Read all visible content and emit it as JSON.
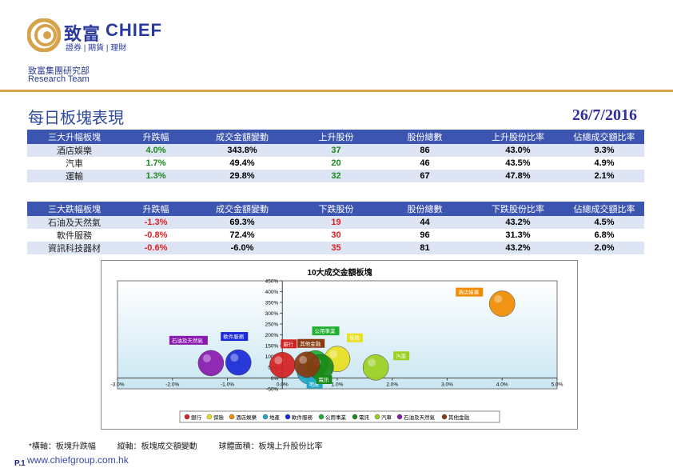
{
  "brand": {
    "name_cn": "致富",
    "name_en": "CHIEF",
    "subtitle": "證券 | 期貨 | 理財"
  },
  "dept": {
    "cn": "致富集團研究部",
    "en": "Research Team"
  },
  "page_title": "每日板塊表現",
  "date": "26/7/2016",
  "top_table": {
    "headers": [
      "三大升幅板塊",
      "升跌幅",
      "成交金額變動",
      "上升股份",
      "股份總數",
      "上升股份比率",
      "佔總成交額比率"
    ],
    "rows": [
      {
        "name": "酒店娛樂",
        "change": "4.0%",
        "turnover": "343.8%",
        "count": "37",
        "total": "86",
        "ratio": "43.0%",
        "share": "9.3%"
      },
      {
        "name": "汽車",
        "change": "1.7%",
        "turnover": "49.4%",
        "count": "20",
        "total": "46",
        "ratio": "43.5%",
        "share": "4.9%"
      },
      {
        "name": "運輸",
        "change": "1.3%",
        "turnover": "29.8%",
        "count": "32",
        "total": "67",
        "ratio": "47.8%",
        "share": "2.1%"
      }
    ]
  },
  "bottom_table": {
    "headers": [
      "三大跌幅板塊",
      "升跌幅",
      "成交金額變動",
      "下跌股份",
      "股份總數",
      "下跌股份比率",
      "佔總成交額比率"
    ],
    "rows": [
      {
        "name": "石油及天然氣",
        "change": "-1.3%",
        "turnover": "69.3%",
        "count": "19",
        "total": "44",
        "ratio": "43.2%",
        "share": "4.5%"
      },
      {
        "name": "軟件服務",
        "change": "-0.8%",
        "turnover": "72.4%",
        "count": "30",
        "total": "96",
        "ratio": "31.3%",
        "share": "6.8%"
      },
      {
        "name": "資訊科技器材",
        "change": "-0.6%",
        "turnover": "-6.0%",
        "count": "35",
        "total": "81",
        "ratio": "43.2%",
        "share": "2.0%"
      }
    ]
  },
  "chart_data": {
    "type": "scatter",
    "title": "10大成交金額板塊",
    "xlim": [
      -3.0,
      5.0
    ],
    "ylim": [
      -50,
      450
    ],
    "x_ticks": [
      "-3.0%",
      "-2.0%",
      "-1.0%",
      "0.0%",
      "1.0%",
      "2.0%",
      "3.0%",
      "4.0%",
      "5.0%"
    ],
    "y_ticks": [
      "-50%",
      "0%",
      "50%",
      "100%",
      "150%",
      "200%",
      "250%",
      "300%",
      "350%",
      "400%",
      "450%"
    ],
    "series": [
      {
        "name": "銀行",
        "x": 0.0,
        "y": 60,
        "color": "#d42020"
      },
      {
        "name": "保險",
        "x": 1.0,
        "y": 88,
        "color": "#e8e020"
      },
      {
        "name": "酒店娛樂",
        "x": 4.0,
        "y": 344,
        "color": "#f08c00"
      },
      {
        "name": "地產",
        "x": 0.5,
        "y": 30,
        "color": "#20a8c8"
      },
      {
        "name": "軟件服務",
        "x": -0.8,
        "y": 72,
        "color": "#1a2ad8"
      },
      {
        "name": "公用事業",
        "x": 0.6,
        "y": 68,
        "color": "#20b030"
      },
      {
        "name": "電訊",
        "x": 0.7,
        "y": 50,
        "color": "#1a8a1a"
      },
      {
        "name": "汽車",
        "x": 1.7,
        "y": 49,
        "color": "#9cd020"
      },
      {
        "name": "石油及天然氣",
        "x": -1.3,
        "y": 69,
        "color": "#8a1ab0"
      },
      {
        "name": "其他金融",
        "x": 0.45,
        "y": 62,
        "color": "#8a3a10"
      }
    ]
  },
  "footnote": {
    "x_axis": "*橫軸：板塊升跌幅",
    "y_axis": "縱軸：板塊成交額變動",
    "bubble": "球體面積：板塊上升股份比率"
  },
  "page_no": "P.1",
  "website": "www.chiefgroup.com.hk"
}
